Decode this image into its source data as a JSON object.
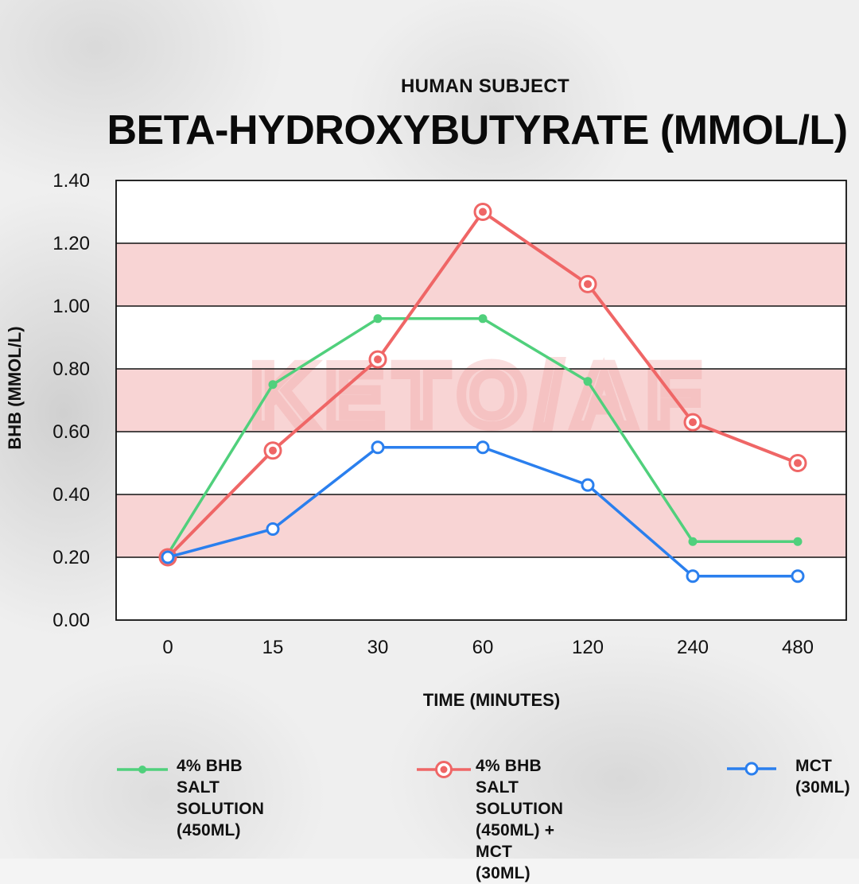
{
  "header": {
    "subtitle": "HUMAN SUBJECT",
    "title": "BETA-HYDROXYBUTYRATE (MMOL/L)"
  },
  "watermark": {
    "text": "KETO/AF"
  },
  "colors": {
    "green": "#50d07c",
    "red": "#ef6666",
    "blue": "#2a7fee",
    "band": "#f8d4d4"
  },
  "chart_data": {
    "type": "line",
    "title": "BETA-HYDROXYBUTYRATE (MMOL/L)",
    "subtitle": "HUMAN SUBJECT",
    "xlabel": "TIME (MINUTES)",
    "ylabel": "BHB (MMOL/L)",
    "categories": [
      "0",
      "15",
      "30",
      "60",
      "120",
      "240",
      "480"
    ],
    "ylim": [
      0,
      1.4
    ],
    "yticks": [
      "0.00",
      "0.20",
      "0.40",
      "0.60",
      "0.80",
      "1.00",
      "1.20",
      "1.40"
    ],
    "legend_position": "bottom",
    "series": [
      {
        "name": "4% BHB SALT SOLUTION\n(450ML)",
        "marker": "dot",
        "color": "#50d07c",
        "values": [
          0.21,
          0.75,
          0.96,
          0.96,
          0.76,
          0.25,
          0.25
        ]
      },
      {
        "name": "4% BHB SALT SOLUTION\n(450ML) + MCT (30ML)",
        "marker": "target",
        "color": "#ef6666",
        "values": [
          0.2,
          0.54,
          0.83,
          1.3,
          1.07,
          0.63,
          0.5
        ]
      },
      {
        "name": "MCT\n(30ML)",
        "marker": "ring",
        "color": "#2a7fee",
        "values": [
          0.2,
          0.29,
          0.55,
          0.55,
          0.43,
          0.14,
          0.14
        ]
      }
    ]
  }
}
